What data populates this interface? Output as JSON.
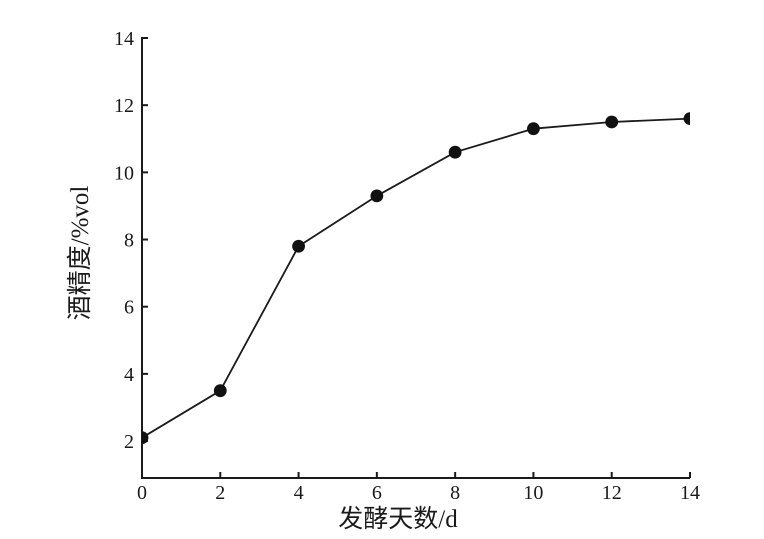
{
  "chart_data": {
    "type": "line",
    "x": [
      0,
      2,
      4,
      6,
      8,
      10,
      12,
      14
    ],
    "y": [
      2.1,
      3.5,
      7.8,
      9.3,
      10.6,
      11.3,
      11.5,
      11.6
    ],
    "title": "",
    "xlabel": "发酵天数/d",
    "ylabel": "酒精度/%vol",
    "xlim": [
      0,
      14
    ],
    "ylim": [
      0.9,
      14
    ],
    "x_ticks": [
      0,
      2,
      4,
      6,
      8,
      10,
      12,
      14
    ],
    "y_ticks": [
      2,
      4,
      6,
      8,
      10,
      12,
      14
    ],
    "grid": false,
    "legend": "none",
    "marker": "filled-circle",
    "colors": {
      "line": "#1a1a1a",
      "marker": "#111111",
      "text": "#1a1a1a",
      "background": "#ffffff"
    }
  }
}
